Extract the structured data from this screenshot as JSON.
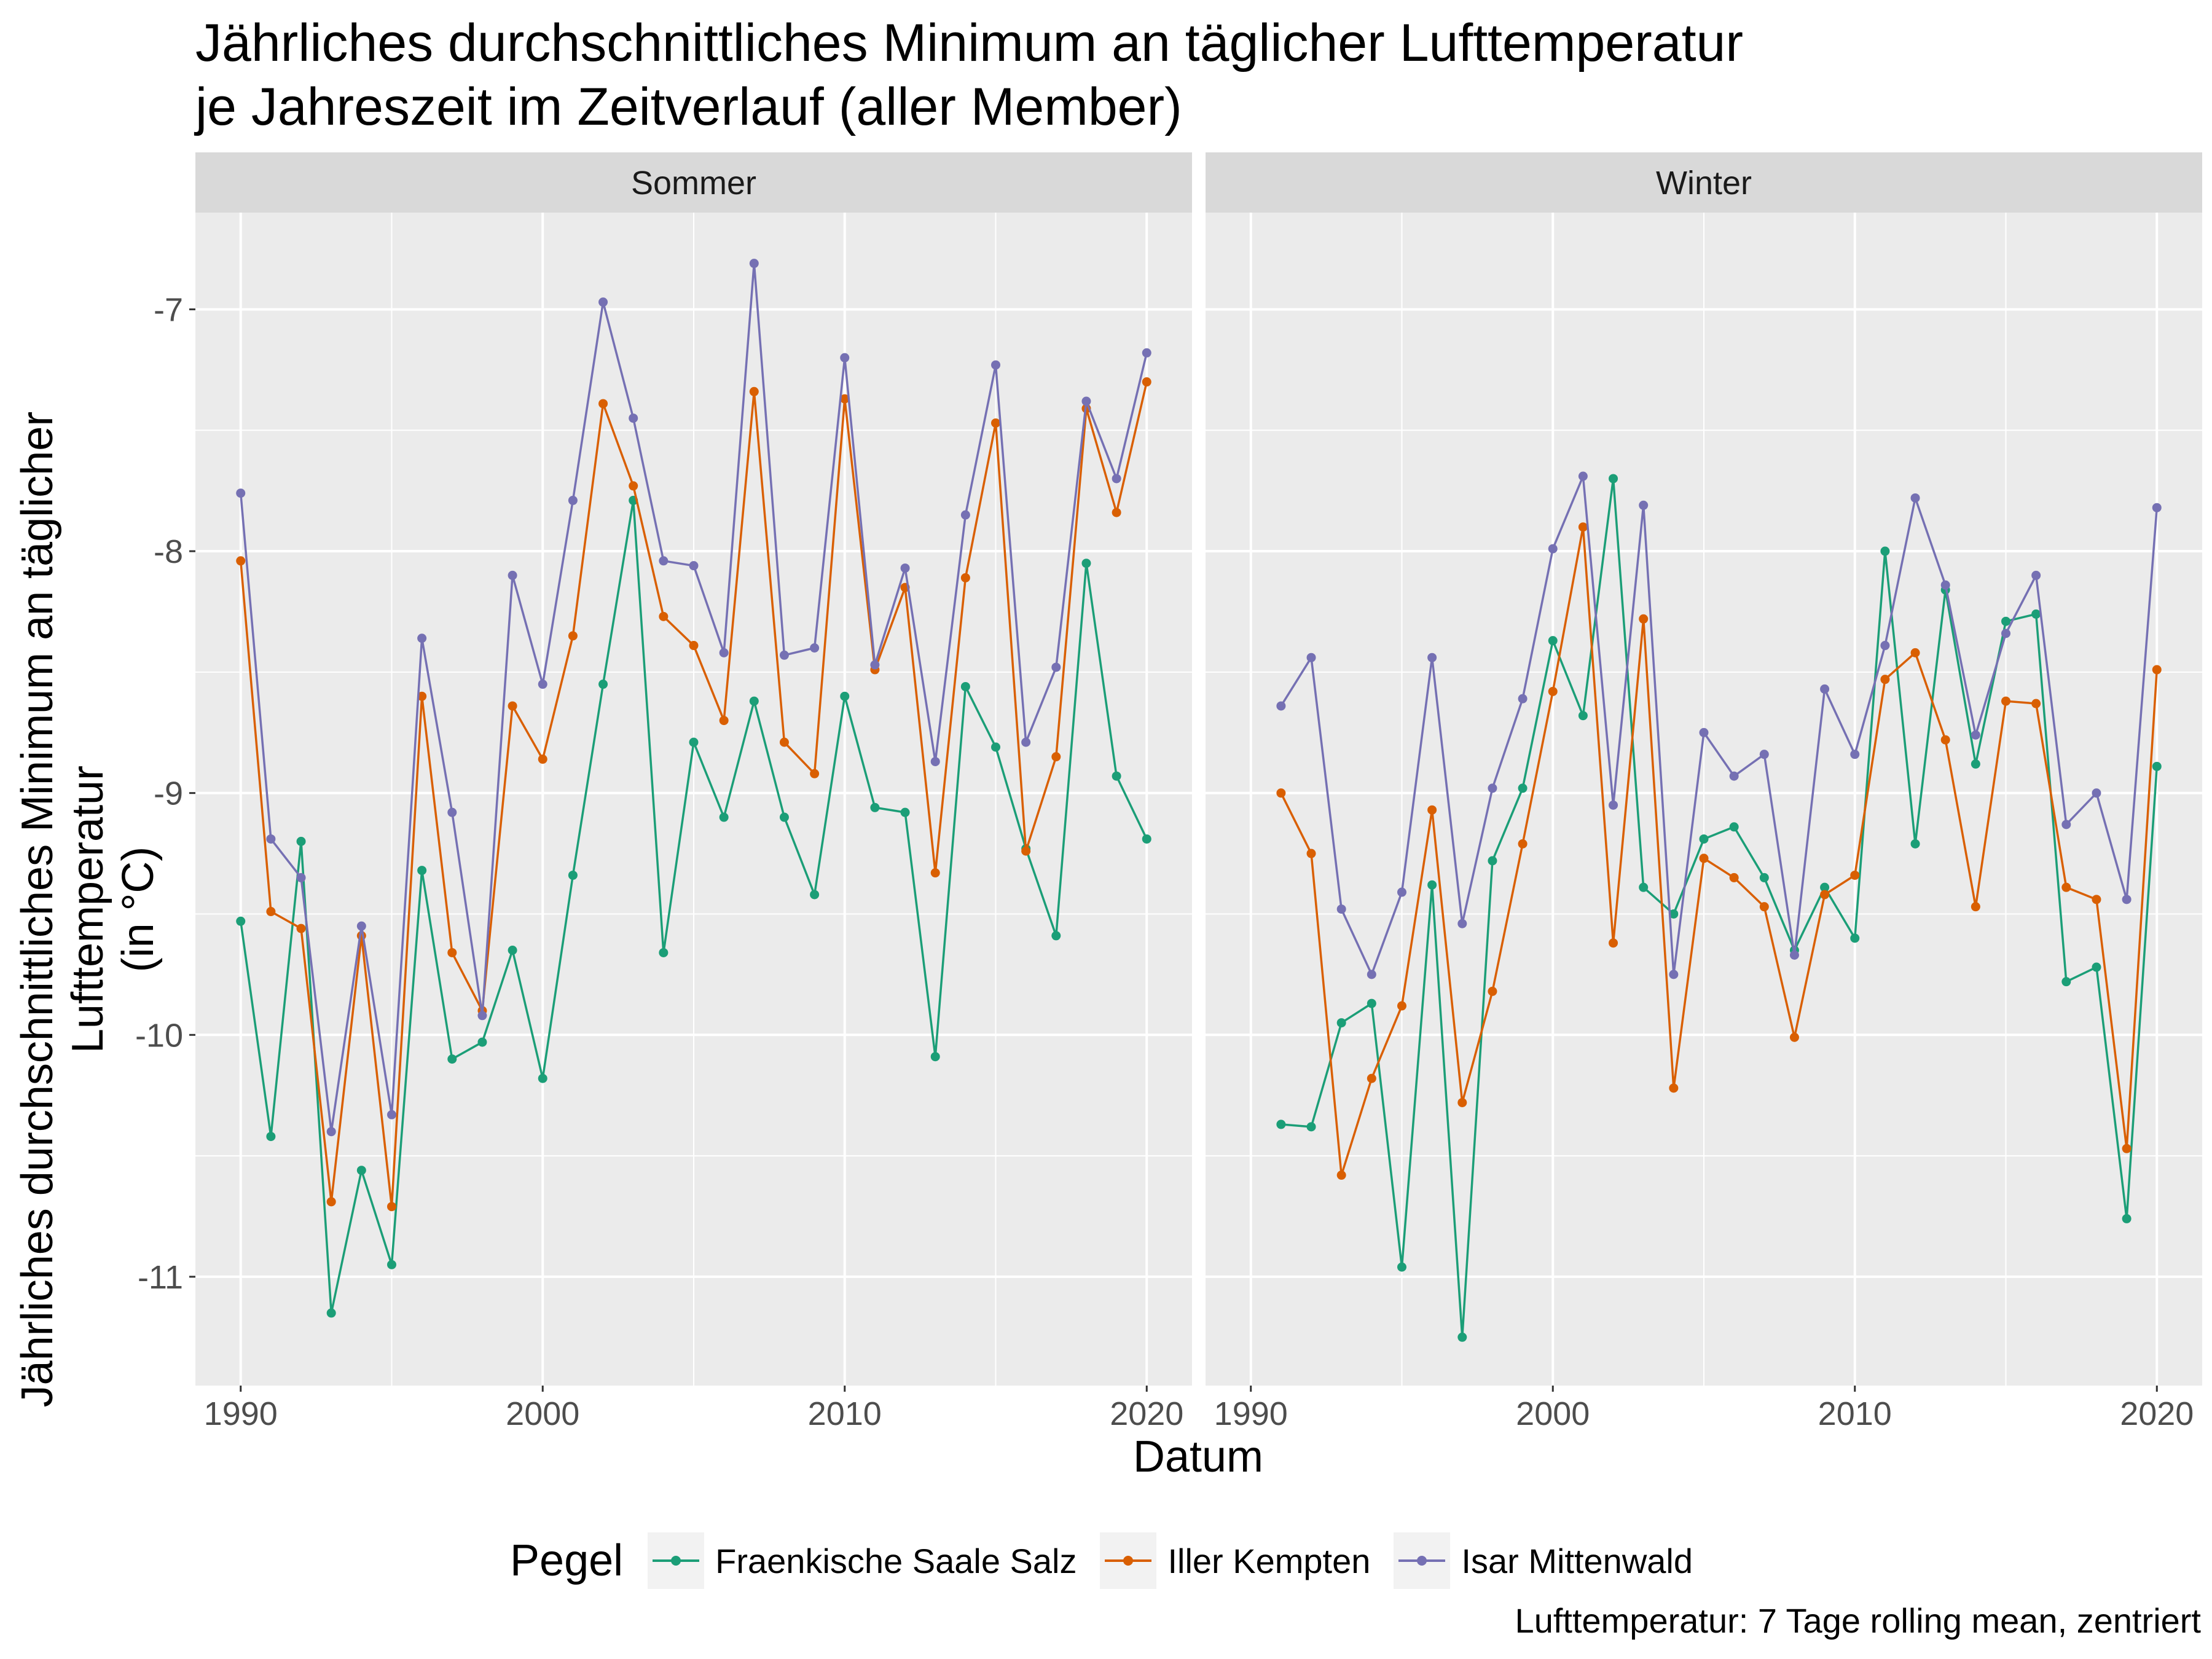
{
  "chart_data": {
    "type": "line",
    "title": [
      "Jährliches durchschnittliches Minimum an täglicher Lufttemperatur",
      "je Jahreszeit im Zeitverlauf (aller Member)"
    ],
    "xlabel": "Datum",
    "ylabel": [
      "Jährliches durchschnittliches Minimum an täglicher Lufttemperatur",
      "(in °C)"
    ],
    "caption": "Lufttemperatur: 7 Tage rolling mean, zentriert",
    "legend_title": "Pegel",
    "legend_position": "bottom",
    "grid": true,
    "xlim": [
      1988.5,
      2021.5
    ],
    "ylim": [
      -11.45,
      -6.6
    ],
    "x_ticks": [
      1990,
      2000,
      2010,
      2020
    ],
    "y_ticks": [
      -11,
      -10,
      -9,
      -8,
      -7
    ],
    "y_tick_labels": [
      "-11",
      "-10",
      "-9",
      "-8",
      "-7"
    ],
    "colors": {
      "Fraenkische Saale Salz": "#1b9e77",
      "Iller Kempten": "#d95f02",
      "Isar Mittenwald": "#7570b3"
    },
    "series_order": [
      "Fraenkische Saale Salz",
      "Iller Kempten",
      "Isar Mittenwald"
    ],
    "panels": [
      {
        "name": "Sommer",
        "series": [
          {
            "name": "Fraenkische Saale Salz",
            "x": [
              1990,
              1991,
              1992,
              1993,
              1994,
              1995,
              1996,
              1997,
              1998,
              1999,
              2000,
              2001,
              2002,
              2003,
              2004,
              2005,
              2006,
              2007,
              2008,
              2009,
              2010,
              2011,
              2012,
              2013,
              2014,
              2015,
              2016,
              2017,
              2018,
              2019,
              2020
            ],
            "y": [
              -9.53,
              -10.42,
              -9.2,
              -11.15,
              -10.56,
              -10.95,
              -9.32,
              -10.1,
              -10.03,
              -9.65,
              -10.18,
              -9.34,
              -8.55,
              -7.79,
              -9.66,
              -8.79,
              -9.1,
              -8.62,
              -9.1,
              -9.42,
              -8.6,
              -9.06,
              -9.08,
              -10.09,
              -8.56,
              -8.81,
              -9.23,
              -9.59,
              -8.05,
              -8.93,
              -9.19
            ]
          },
          {
            "name": "Iller Kempten",
            "x": [
              1990,
              1991,
              1992,
              1993,
              1994,
              1995,
              1996,
              1997,
              1998,
              1999,
              2000,
              2001,
              2002,
              2003,
              2004,
              2005,
              2006,
              2007,
              2008,
              2009,
              2010,
              2011,
              2012,
              2013,
              2014,
              2015,
              2016,
              2017,
              2018,
              2019,
              2020
            ],
            "y": [
              -8.04,
              -9.49,
              -9.56,
              -10.69,
              -9.59,
              -10.71,
              -8.6,
              -9.66,
              -9.9,
              -8.64,
              -8.86,
              -8.35,
              -7.39,
              -7.73,
              -8.27,
              -8.39,
              -8.7,
              -7.34,
              -8.79,
              -8.92,
              -7.37,
              -8.49,
              -8.15,
              -9.33,
              -8.11,
              -7.47,
              -9.24,
              -8.85,
              -7.41,
              -7.84,
              -7.3
            ]
          },
          {
            "name": "Isar Mittenwald",
            "x": [
              1990,
              1991,
              1992,
              1993,
              1994,
              1995,
              1996,
              1997,
              1998,
              1999,
              2000,
              2001,
              2002,
              2003,
              2004,
              2005,
              2006,
              2007,
              2008,
              2009,
              2010,
              2011,
              2012,
              2013,
              2014,
              2015,
              2016,
              2017,
              2018,
              2019,
              2020
            ],
            "y": [
              -7.76,
              -9.19,
              -9.35,
              -10.4,
              -9.55,
              -10.33,
              -8.36,
              -9.08,
              -9.92,
              -8.1,
              -8.55,
              -7.79,
              -6.97,
              -7.45,
              -8.04,
              -8.06,
              -8.42,
              -6.81,
              -8.43,
              -8.4,
              -7.2,
              -8.47,
              -8.07,
              -8.87,
              -7.85,
              -7.23,
              -8.79,
              -8.48,
              -7.38,
              -7.7,
              -7.18
            ]
          }
        ]
      },
      {
        "name": "Winter",
        "series": [
          {
            "name": "Fraenkische Saale Salz",
            "x": [
              1991,
              1992,
              1993,
              1994,
              1995,
              1996,
              1997,
              1998,
              1999,
              2000,
              2001,
              2002,
              2003,
              2004,
              2005,
              2006,
              2007,
              2008,
              2009,
              2010,
              2011,
              2012,
              2013,
              2014,
              2015,
              2016,
              2017,
              2018,
              2019,
              2020
            ],
            "y": [
              -10.37,
              -10.38,
              -9.95,
              -9.87,
              -10.96,
              -9.38,
              -11.25,
              -9.28,
              -8.98,
              -8.37,
              -8.68,
              -7.7,
              -9.39,
              -9.5,
              -9.19,
              -9.14,
              -9.35,
              -9.65,
              -9.39,
              -9.6,
              -8.0,
              -9.21,
              -8.16,
              -8.88,
              -8.29,
              -8.26,
              -9.78,
              -9.72,
              -10.76,
              -8.89
            ]
          },
          {
            "name": "Iller Kempten",
            "x": [
              1991,
              1992,
              1993,
              1994,
              1995,
              1996,
              1997,
              1998,
              1999,
              2000,
              2001,
              2002,
              2003,
              2004,
              2005,
              2006,
              2007,
              2008,
              2009,
              2010,
              2011,
              2012,
              2013,
              2014,
              2015,
              2016,
              2017,
              2018,
              2019,
              2020
            ],
            "y": [
              -9.0,
              -9.25,
              -10.58,
              -10.18,
              -9.88,
              -9.07,
              -10.28,
              -9.82,
              -9.21,
              -8.58,
              -7.9,
              -9.62,
              -8.28,
              -10.22,
              -9.27,
              -9.35,
              -9.47,
              -10.01,
              -9.42,
              -9.34,
              -8.53,
              -8.42,
              -8.78,
              -9.47,
              -8.62,
              -8.63,
              -9.39,
              -9.44,
              -10.47,
              -8.49
            ]
          },
          {
            "name": "Isar Mittenwald",
            "x": [
              1991,
              1992,
              1993,
              1994,
              1995,
              1996,
              1997,
              1998,
              1999,
              2000,
              2001,
              2002,
              2003,
              2004,
              2005,
              2006,
              2007,
              2008,
              2009,
              2010,
              2011,
              2012,
              2013,
              2014,
              2015,
              2016,
              2017,
              2018,
              2019,
              2020
            ],
            "y": [
              -8.64,
              -8.44,
              -9.48,
              -9.75,
              -9.41,
              -8.44,
              -9.54,
              -8.98,
              -8.61,
              -7.99,
              -7.69,
              -9.05,
              -7.81,
              -9.75,
              -8.75,
              -8.93,
              -8.84,
              -9.67,
              -8.57,
              -8.84,
              -8.39,
              -7.78,
              -8.14,
              -8.76,
              -8.34,
              -8.1,
              -9.13,
              -9.0,
              -9.44,
              -7.82
            ]
          }
        ]
      }
    ]
  }
}
